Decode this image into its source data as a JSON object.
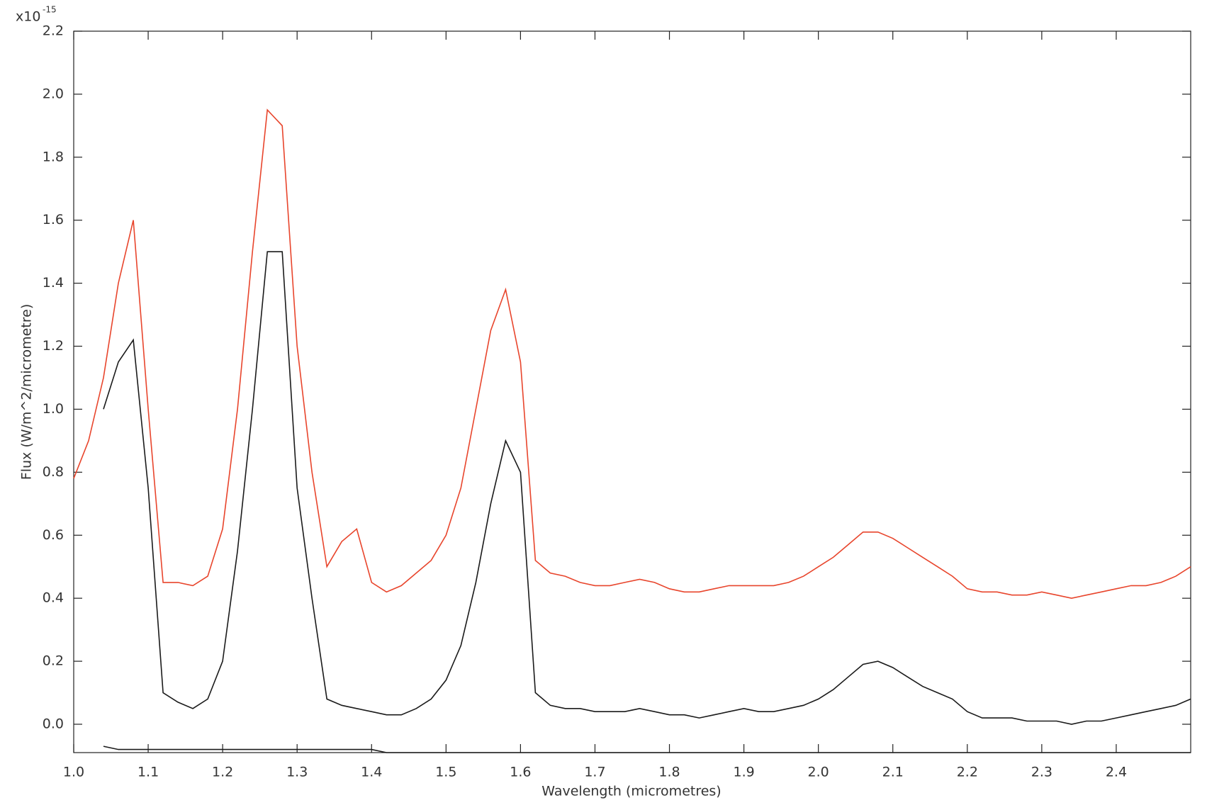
{
  "chart_data": {
    "type": "line",
    "x_label": "Wavelength (micrometres)",
    "y_label": "Flux (W/m^2/micrometre)",
    "y_multiplier": {
      "base": "x10",
      "exponent": "-15"
    },
    "xlim": [
      1.0,
      2.5
    ],
    "ylim": [
      -0.09,
      2.2
    ],
    "xticks": [
      {
        "value": 1.0,
        "label": "1.0"
      },
      1.1,
      1.2,
      1.3,
      1.4,
      1.5,
      1.6,
      1.7,
      1.8,
      1.9,
      {
        "value": 2.0,
        "label": "2.0"
      },
      2.1,
      2.2,
      2.3,
      2.4
    ],
    "yticks": [
      {
        "value": 0.0,
        "label": "0.0"
      },
      0.2,
      0.4,
      0.6,
      0.8,
      {
        "value": 1.0,
        "label": "1.0"
      },
      1.2,
      1.4,
      1.6,
      1.8,
      {
        "value": 2.0,
        "label": "2.0"
      },
      2.2
    ],
    "x": [
      1.0,
      1.02,
      1.04,
      1.06,
      1.08,
      1.1,
      1.12,
      1.14,
      1.16,
      1.18,
      1.2,
      1.22,
      1.24,
      1.26,
      1.28,
      1.3,
      1.32,
      1.34,
      1.36,
      1.38,
      1.4,
      1.42,
      1.44,
      1.46,
      1.48,
      1.5,
      1.52,
      1.54,
      1.56,
      1.58,
      1.6,
      1.62,
      1.64,
      1.66,
      1.68,
      1.7,
      1.72,
      1.74,
      1.76,
      1.78,
      1.8,
      1.82,
      1.84,
      1.86,
      1.88,
      1.9,
      1.92,
      1.94,
      1.96,
      1.98,
      2.0,
      2.02,
      2.04,
      2.06,
      2.08,
      2.1,
      2.12,
      2.14,
      2.16,
      2.18,
      2.2,
      2.22,
      2.24,
      2.26,
      2.28,
      2.3,
      2.32,
      2.34,
      2.36,
      2.38,
      2.4,
      2.42,
      2.44,
      2.46,
      2.48,
      2.5
    ],
    "series": [
      {
        "color": "#e8452c",
        "values": [
          0.78,
          0.9,
          1.1,
          1.4,
          1.6,
          1.0,
          0.45,
          0.45,
          0.44,
          0.47,
          0.62,
          1.0,
          1.5,
          1.95,
          1.9,
          1.2,
          0.8,
          0.5,
          0.58,
          0.62,
          0.45,
          0.42,
          0.44,
          0.48,
          0.52,
          0.6,
          0.75,
          1.0,
          1.25,
          1.38,
          1.15,
          0.52,
          0.48,
          0.47,
          0.45,
          0.44,
          0.44,
          0.45,
          0.46,
          0.45,
          0.43,
          0.42,
          0.42,
          0.43,
          0.44,
          0.44,
          0.44,
          0.44,
          0.45,
          0.47,
          0.5,
          0.53,
          0.57,
          0.61,
          0.61,
          0.59,
          0.56,
          0.53,
          0.5,
          0.47,
          0.43,
          0.42,
          0.42,
          0.41,
          0.41,
          0.42,
          0.41,
          0.4,
          0.41,
          0.42,
          0.43,
          0.44,
          0.44,
          0.45,
          0.47,
          0.5
        ]
      },
      {
        "color": "#1a1a1a",
        "values": [
          null,
          null,
          1.0,
          1.15,
          1.22,
          0.75,
          0.1,
          0.07,
          0.05,
          0.08,
          0.2,
          0.55,
          1.0,
          1.5,
          1.5,
          0.75,
          0.4,
          0.08,
          0.06,
          0.05,
          0.04,
          0.03,
          0.03,
          0.05,
          0.08,
          0.14,
          0.25,
          0.45,
          0.7,
          0.9,
          0.8,
          0.1,
          0.06,
          0.05,
          0.05,
          0.04,
          0.04,
          0.04,
          0.05,
          0.04,
          0.03,
          0.03,
          0.02,
          0.03,
          0.04,
          0.05,
          0.04,
          0.04,
          0.05,
          0.06,
          0.08,
          0.11,
          0.15,
          0.19,
          0.2,
          0.18,
          0.15,
          0.12,
          0.1,
          0.08,
          0.04,
          0.02,
          0.02,
          0.02,
          0.01,
          0.01,
          0.01,
          0.0,
          0.01,
          0.01,
          0.02,
          0.03,
          0.04,
          0.05,
          0.06,
          0.08
        ]
      },
      {
        "color": "#1a1a1a",
        "values": [
          null,
          null,
          -0.07,
          -0.08,
          -0.08,
          -0.08,
          -0.08,
          -0.08,
          -0.08,
          -0.08,
          -0.08,
          -0.08,
          -0.08,
          -0.08,
          -0.08,
          -0.08,
          -0.08,
          -0.08,
          -0.08,
          -0.08,
          -0.08,
          -0.09,
          -0.09,
          -0.09,
          -0.09,
          -0.09,
          -0.09,
          -0.09,
          -0.09,
          -0.09,
          -0.09,
          -0.09,
          -0.09,
          -0.09,
          -0.09,
          -0.09,
          -0.09,
          -0.09,
          -0.09,
          -0.09,
          -0.09,
          -0.09,
          -0.09,
          -0.09,
          -0.09,
          -0.09,
          -0.09,
          -0.09,
          -0.09,
          -0.09,
          -0.09,
          -0.09,
          -0.09,
          -0.09,
          -0.09,
          -0.09,
          -0.09,
          -0.09,
          -0.09,
          -0.09,
          -0.09,
          -0.09,
          -0.09,
          -0.09,
          -0.09,
          -0.09,
          -0.09,
          -0.09,
          -0.09,
          -0.09,
          -0.09,
          -0.09,
          -0.09,
          -0.09,
          -0.09,
          -0.09
        ]
      }
    ]
  }
}
